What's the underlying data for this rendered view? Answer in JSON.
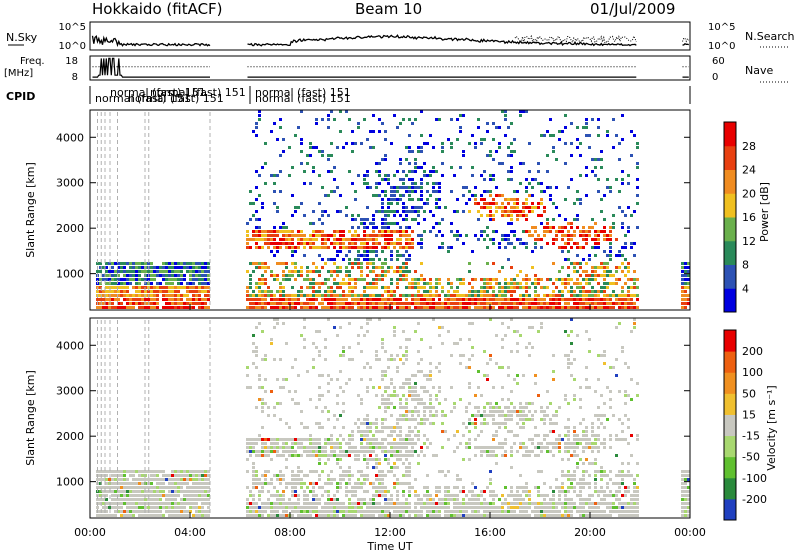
{
  "header": {
    "left": "Hokkaido (fitACF)",
    "center": "Beam 10",
    "right": "01/Jul/2009"
  },
  "panels": {
    "nsky": {
      "left_label": "N.Sky",
      "right_label": "N.Search",
      "left_ticks": [
        "10^5",
        "10^0"
      ],
      "right_ticks": [
        "10^5",
        "10^0"
      ]
    },
    "freq": {
      "left_label_1": "Freq.",
      "left_label_2": "[MHz]",
      "right_label": "Nave",
      "left_ticks": [
        "18",
        "8"
      ],
      "right_ticks": [
        "60",
        "0"
      ]
    },
    "cpid": {
      "label": "CPID",
      "overlap_text": "normal (fast) 151",
      "main_text": "normal (fast) 151"
    }
  },
  "colors": {
    "power": [
      "#0000e0",
      "#2d52b4",
      "#2a8a5a",
      "#6ab04c",
      "#f0c020",
      "#f08c20",
      "#e84010",
      "#e80000"
    ],
    "velocity": [
      "#2040c0",
      "#2a8a3c",
      "#60c030",
      "#a8d870",
      "#c8c8c0",
      "#f0c030",
      "#f09020",
      "#ee6010",
      "#e80000"
    ]
  },
  "chart_data": [
    {
      "type": "heatmap",
      "parameter": "Power",
      "ylabel": "Slant Range [km]",
      "colorbar_label": "Power [dB]",
      "colorbar_ticks": [
        "28",
        "24",
        "20",
        "16",
        "12",
        "8",
        "4"
      ],
      "yticks": [
        "1000",
        "2000",
        "3000",
        "4000"
      ],
      "yticks_values": [
        1000,
        2000,
        3000,
        4000
      ],
      "ylim": [
        200,
        4600
      ]
    },
    {
      "type": "heatmap",
      "parameter": "Velocity",
      "ylabel": "Slant Range [km]",
      "colorbar_label": "Velocity [m s⁻¹]",
      "colorbar_ticks": [
        "200",
        "100",
        "50",
        "15",
        "-15",
        "-50",
        "-100",
        "-200"
      ],
      "yticks": [
        "1000",
        "2000",
        "3000",
        "4000"
      ],
      "yticks_values": [
        1000,
        2000,
        3000,
        4000
      ],
      "ylim": [
        200,
        4600
      ],
      "xlabel": "Time UT",
      "xticks": [
        "00:00",
        "04:00",
        "08:00",
        "12:00",
        "16:00",
        "20:00",
        "00:00"
      ],
      "xticks_hours": [
        0,
        4,
        8,
        12,
        16,
        20,
        24
      ],
      "xlim_hours": [
        0,
        24
      ]
    }
  ]
}
